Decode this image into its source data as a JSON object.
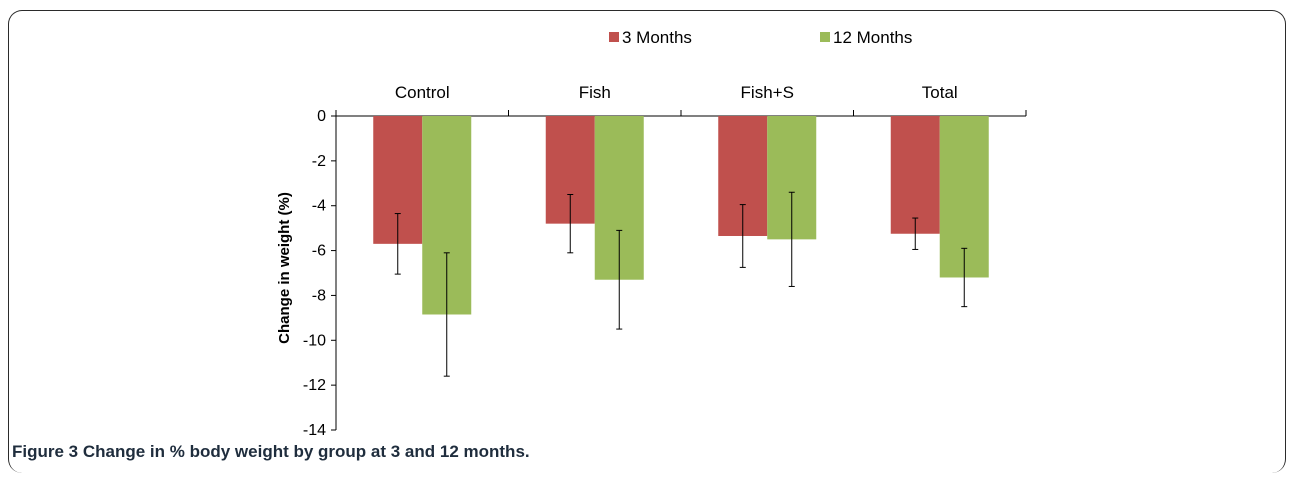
{
  "chart_data": {
    "type": "bar",
    "categories": [
      "Control",
      "Fish",
      "Fish+S",
      "Total"
    ],
    "series": [
      {
        "name": "3 Months",
        "color": "#c0504d",
        "values": [
          -5.7,
          -4.8,
          -5.35,
          -5.25
        ],
        "error": [
          1.35,
          1.3,
          1.4,
          0.7
        ]
      },
      {
        "name": "12 Months",
        "color": "#9bbb59",
        "values": [
          -8.85,
          -7.3,
          -5.5,
          -7.2
        ],
        "error": [
          2.75,
          2.2,
          2.1,
          1.3
        ]
      }
    ],
    "ylabel": "Change in weight (%)",
    "xlabel": "",
    "ylim": [
      -14,
      0
    ],
    "yticks": [
      0,
      -2,
      -4,
      -6,
      -8,
      -10,
      -12,
      -14
    ],
    "legend_position": "top-center",
    "grid": false
  },
  "caption": {
    "label": "Figure 3",
    "text": "Change in % body weight by group at 3 and 12 months."
  }
}
